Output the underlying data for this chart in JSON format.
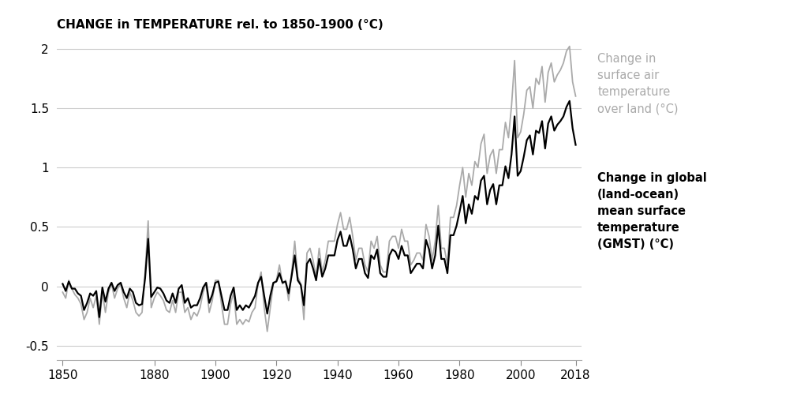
{
  "title": "CHANGE in TEMPERATURE rel. to 1850-1900 (°C)",
  "ylim": [
    -0.62,
    2.1
  ],
  "xlim": [
    1848,
    2020
  ],
  "yticks": [
    -0.5,
    0,
    0.5,
    1,
    1.5,
    2
  ],
  "xticks": [
    1850,
    1880,
    1900,
    1920,
    1940,
    1960,
    1980,
    2000,
    2018
  ],
  "land_color": "#aaaaaa",
  "gmst_color": "#000000",
  "background_color": "#ffffff",
  "grid_color": "#cccccc",
  "label_land": "Change in\nsurface air\ntemperature\nover land (°C)",
  "label_gmst": "Change in global\n(land-ocean)\nmean surface\ntemperature\n(GMST) (°C)",
  "land_temps": {
    "years": [
      1850,
      1851,
      1852,
      1853,
      1854,
      1855,
      1856,
      1857,
      1858,
      1859,
      1860,
      1861,
      1862,
      1863,
      1864,
      1865,
      1866,
      1867,
      1868,
      1869,
      1870,
      1871,
      1872,
      1873,
      1874,
      1875,
      1876,
      1877,
      1878,
      1879,
      1880,
      1881,
      1882,
      1883,
      1884,
      1885,
      1886,
      1887,
      1888,
      1889,
      1890,
      1891,
      1892,
      1893,
      1894,
      1895,
      1896,
      1897,
      1898,
      1899,
      1900,
      1901,
      1902,
      1903,
      1904,
      1905,
      1906,
      1907,
      1908,
      1909,
      1910,
      1911,
      1912,
      1913,
      1914,
      1915,
      1916,
      1917,
      1918,
      1919,
      1920,
      1921,
      1922,
      1923,
      1924,
      1925,
      1926,
      1927,
      1928,
      1929,
      1930,
      1931,
      1932,
      1933,
      1934,
      1935,
      1936,
      1937,
      1938,
      1939,
      1940,
      1941,
      1942,
      1943,
      1944,
      1945,
      1946,
      1947,
      1948,
      1949,
      1950,
      1951,
      1952,
      1953,
      1954,
      1955,
      1956,
      1957,
      1958,
      1959,
      1960,
      1961,
      1962,
      1963,
      1964,
      1965,
      1966,
      1967,
      1968,
      1969,
      1970,
      1971,
      1972,
      1973,
      1974,
      1975,
      1976,
      1977,
      1978,
      1979,
      1980,
      1981,
      1982,
      1983,
      1984,
      1985,
      1986,
      1987,
      1988,
      1989,
      1990,
      1991,
      1992,
      1993,
      1994,
      1995,
      1996,
      1997,
      1998,
      1999,
      2000,
      2001,
      2002,
      2003,
      2004,
      2005,
      2006,
      2007,
      2008,
      2009,
      2010,
      2011,
      2012,
      2013,
      2014,
      2015,
      2016,
      2017,
      2018
    ],
    "values": [
      -0.05,
      -0.1,
      0.05,
      -0.02,
      -0.07,
      -0.1,
      -0.15,
      -0.28,
      -0.22,
      -0.1,
      -0.18,
      -0.08,
      -0.32,
      -0.05,
      -0.22,
      -0.05,
      0.02,
      -0.1,
      -0.02,
      0.02,
      -0.1,
      -0.18,
      -0.05,
      -0.12,
      -0.22,
      -0.25,
      -0.22,
      0.12,
      0.55,
      -0.18,
      -0.1,
      -0.05,
      -0.08,
      -0.12,
      -0.2,
      -0.22,
      -0.12,
      -0.22,
      -0.05,
      -0.05,
      -0.22,
      -0.18,
      -0.28,
      -0.22,
      -0.25,
      -0.18,
      -0.05,
      0.02,
      -0.22,
      -0.12,
      0.05,
      0.05,
      -0.15,
      -0.32,
      -0.32,
      -0.15,
      -0.05,
      -0.32,
      -0.28,
      -0.32,
      -0.28,
      -0.3,
      -0.22,
      -0.18,
      0.02,
      0.12,
      -0.18,
      -0.38,
      -0.18,
      0.02,
      0.05,
      0.18,
      0.02,
      0.05,
      -0.12,
      0.12,
      0.38,
      0.08,
      0.02,
      -0.28,
      0.28,
      0.32,
      0.22,
      0.08,
      0.32,
      0.12,
      0.22,
      0.38,
      0.38,
      0.38,
      0.52,
      0.62,
      0.48,
      0.48,
      0.58,
      0.42,
      0.22,
      0.32,
      0.32,
      0.18,
      0.12,
      0.38,
      0.32,
      0.42,
      0.18,
      0.12,
      0.12,
      0.38,
      0.42,
      0.42,
      0.32,
      0.48,
      0.38,
      0.38,
      0.18,
      0.22,
      0.28,
      0.28,
      0.22,
      0.52,
      0.42,
      0.22,
      0.38,
      0.68,
      0.32,
      0.32,
      0.18,
      0.58,
      0.58,
      0.68,
      0.85,
      1.0,
      0.75,
      0.95,
      0.85,
      1.05,
      1.0,
      1.2,
      1.28,
      0.95,
      1.1,
      1.15,
      0.95,
      1.15,
      1.15,
      1.38,
      1.25,
      1.52,
      1.9,
      1.25,
      1.3,
      1.45,
      1.65,
      1.68,
      1.5,
      1.75,
      1.7,
      1.85,
      1.55,
      1.8,
      1.88,
      1.72,
      1.78,
      1.82,
      1.88,
      1.98,
      2.02,
      1.72,
      1.6
    ]
  },
  "gmst_temps": {
    "years": [
      1850,
      1851,
      1852,
      1853,
      1854,
      1855,
      1856,
      1857,
      1858,
      1859,
      1860,
      1861,
      1862,
      1863,
      1864,
      1865,
      1866,
      1867,
      1868,
      1869,
      1870,
      1871,
      1872,
      1873,
      1874,
      1875,
      1876,
      1877,
      1878,
      1879,
      1880,
      1881,
      1882,
      1883,
      1884,
      1885,
      1886,
      1887,
      1888,
      1889,
      1890,
      1891,
      1892,
      1893,
      1894,
      1895,
      1896,
      1897,
      1898,
      1899,
      1900,
      1901,
      1902,
      1903,
      1904,
      1905,
      1906,
      1907,
      1908,
      1909,
      1910,
      1911,
      1912,
      1913,
      1914,
      1915,
      1916,
      1917,
      1918,
      1919,
      1920,
      1921,
      1922,
      1923,
      1924,
      1925,
      1926,
      1927,
      1928,
      1929,
      1930,
      1931,
      1932,
      1933,
      1934,
      1935,
      1936,
      1937,
      1938,
      1939,
      1940,
      1941,
      1942,
      1943,
      1944,
      1945,
      1946,
      1947,
      1948,
      1949,
      1950,
      1951,
      1952,
      1953,
      1954,
      1955,
      1956,
      1957,
      1958,
      1959,
      1960,
      1961,
      1962,
      1963,
      1964,
      1965,
      1966,
      1967,
      1968,
      1969,
      1970,
      1971,
      1972,
      1973,
      1974,
      1975,
      1976,
      1977,
      1978,
      1979,
      1980,
      1981,
      1982,
      1983,
      1984,
      1985,
      1986,
      1987,
      1988,
      1989,
      1990,
      1991,
      1992,
      1993,
      1994,
      1995,
      1996,
      1997,
      1998,
      1999,
      2000,
      2001,
      2002,
      2003,
      2004,
      2005,
      2006,
      2007,
      2008,
      2009,
      2010,
      2011,
      2012,
      2013,
      2014,
      2015,
      2016,
      2017,
      2018
    ],
    "values": [
      0.02,
      -0.04,
      0.04,
      -0.02,
      -0.02,
      -0.06,
      -0.08,
      -0.2,
      -0.14,
      -0.06,
      -0.08,
      -0.04,
      -0.26,
      -0.01,
      -0.13,
      -0.02,
      0.03,
      -0.04,
      0.01,
      0.03,
      -0.05,
      -0.1,
      -0.02,
      -0.05,
      -0.14,
      -0.16,
      -0.15,
      0.07,
      0.4,
      -0.09,
      -0.05,
      -0.01,
      -0.02,
      -0.06,
      -0.12,
      -0.14,
      -0.06,
      -0.14,
      -0.02,
      0.01,
      -0.14,
      -0.1,
      -0.18,
      -0.16,
      -0.16,
      -0.1,
      -0.01,
      0.03,
      -0.14,
      -0.07,
      0.03,
      0.04,
      -0.08,
      -0.2,
      -0.2,
      -0.08,
      -0.01,
      -0.2,
      -0.16,
      -0.2,
      -0.16,
      -0.18,
      -0.13,
      -0.08,
      0.03,
      0.08,
      -0.08,
      -0.23,
      -0.08,
      0.03,
      0.04,
      0.11,
      0.03,
      0.04,
      -0.06,
      0.09,
      0.26,
      0.05,
      0.01,
      -0.16,
      0.19,
      0.23,
      0.15,
      0.05,
      0.23,
      0.08,
      0.15,
      0.26,
      0.26,
      0.26,
      0.39,
      0.46,
      0.34,
      0.34,
      0.43,
      0.31,
      0.15,
      0.23,
      0.23,
      0.11,
      0.07,
      0.26,
      0.23,
      0.31,
      0.11,
      0.08,
      0.08,
      0.26,
      0.31,
      0.29,
      0.23,
      0.34,
      0.26,
      0.26,
      0.11,
      0.15,
      0.19,
      0.19,
      0.15,
      0.39,
      0.31,
      0.15,
      0.26,
      0.51,
      0.23,
      0.23,
      0.11,
      0.43,
      0.43,
      0.51,
      0.63,
      0.76,
      0.53,
      0.69,
      0.61,
      0.76,
      0.73,
      0.89,
      0.93,
      0.69,
      0.81,
      0.86,
      0.69,
      0.85,
      0.85,
      1.01,
      0.91,
      1.11,
      1.43,
      0.93,
      0.97,
      1.09,
      1.23,
      1.27,
      1.11,
      1.31,
      1.29,
      1.39,
      1.16,
      1.37,
      1.43,
      1.31,
      1.36,
      1.39,
      1.43,
      1.51,
      1.56,
      1.33,
      1.19
    ]
  }
}
